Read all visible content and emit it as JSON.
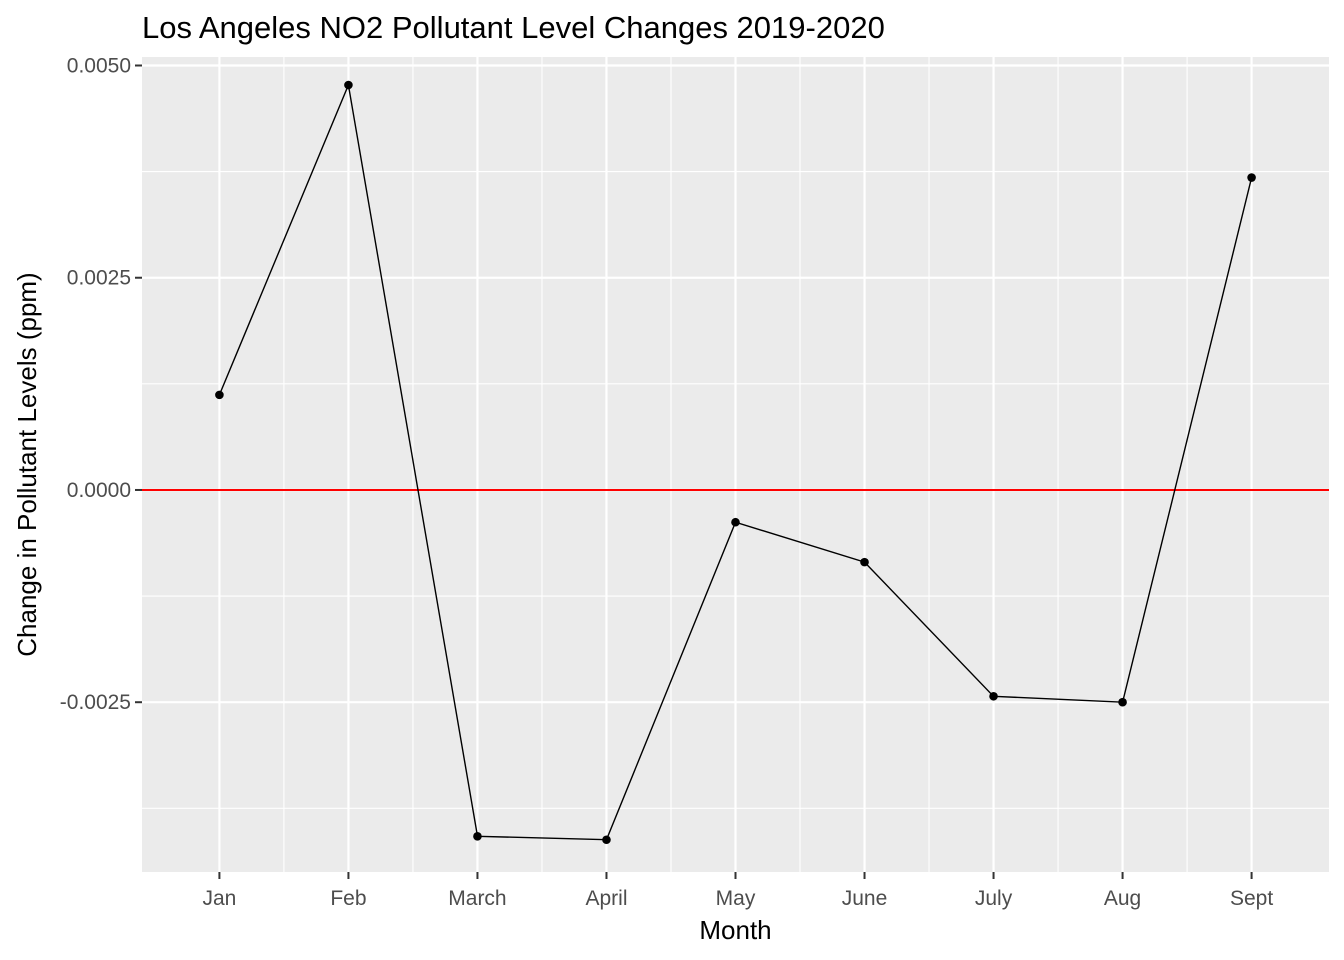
{
  "chart_data": {
    "type": "line",
    "title": "Los Angeles NO2 Pollutant Level Changes 2019-2020",
    "xlabel": "Month",
    "ylabel": "Change in Pollutant Levels (ppm)",
    "categories": [
      "Jan",
      "Feb",
      "March",
      "April",
      "May",
      "June",
      "July",
      "Aug",
      "Sept"
    ],
    "values": [
      0.00112,
      0.00477,
      -0.00408,
      -0.00412,
      -0.00038,
      -0.00085,
      -0.00243,
      -0.0025,
      0.00368
    ],
    "ylim": [
      -0.0045,
      0.0051
    ],
    "yticks": [
      -0.0025,
      0.0,
      0.0025,
      0.005
    ],
    "ytick_labels": [
      "-0.0025",
      "0.0000",
      "0.0025",
      "0.0050"
    ],
    "reference_line": {
      "y": 0,
      "color": "#ff0000"
    },
    "colors": {
      "panel": "#ebebeb",
      "grid": "#ffffff",
      "line": "#000000",
      "point": "#000000"
    },
    "grid": true,
    "legend": "none"
  }
}
